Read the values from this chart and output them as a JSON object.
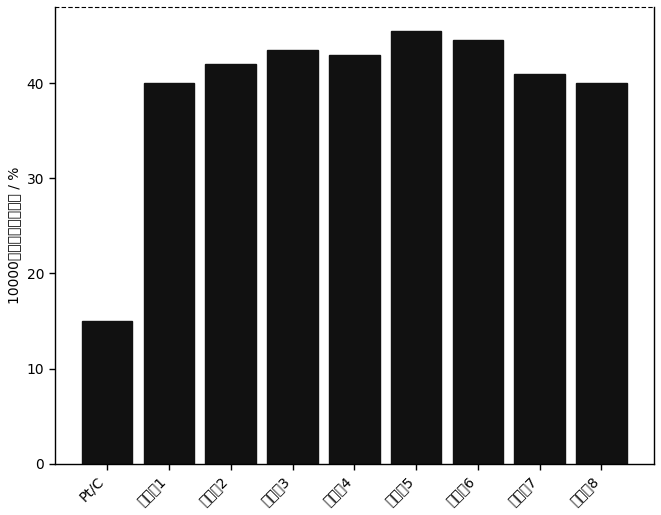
{
  "categories": [
    "Pt/C",
    "实施例1",
    "实施例2",
    "实施例3",
    "实施例4",
    "实施例5",
    "实施例6",
    "实施例7",
    "实施例8"
  ],
  "values": [
    15.0,
    40.0,
    42.0,
    43.5,
    43.0,
    45.5,
    44.5,
    41.0,
    40.0
  ],
  "bar_color": "#111111",
  "ylabel": "10000圈后剩余活性面积 / %",
  "ylim": [
    0,
    48
  ],
  "yticks": [
    0,
    10,
    20,
    30,
    40
  ],
  "background_color": "#ffffff",
  "tick_fontsize": 10,
  "ylabel_fontsize": 10,
  "bar_width": 0.82
}
